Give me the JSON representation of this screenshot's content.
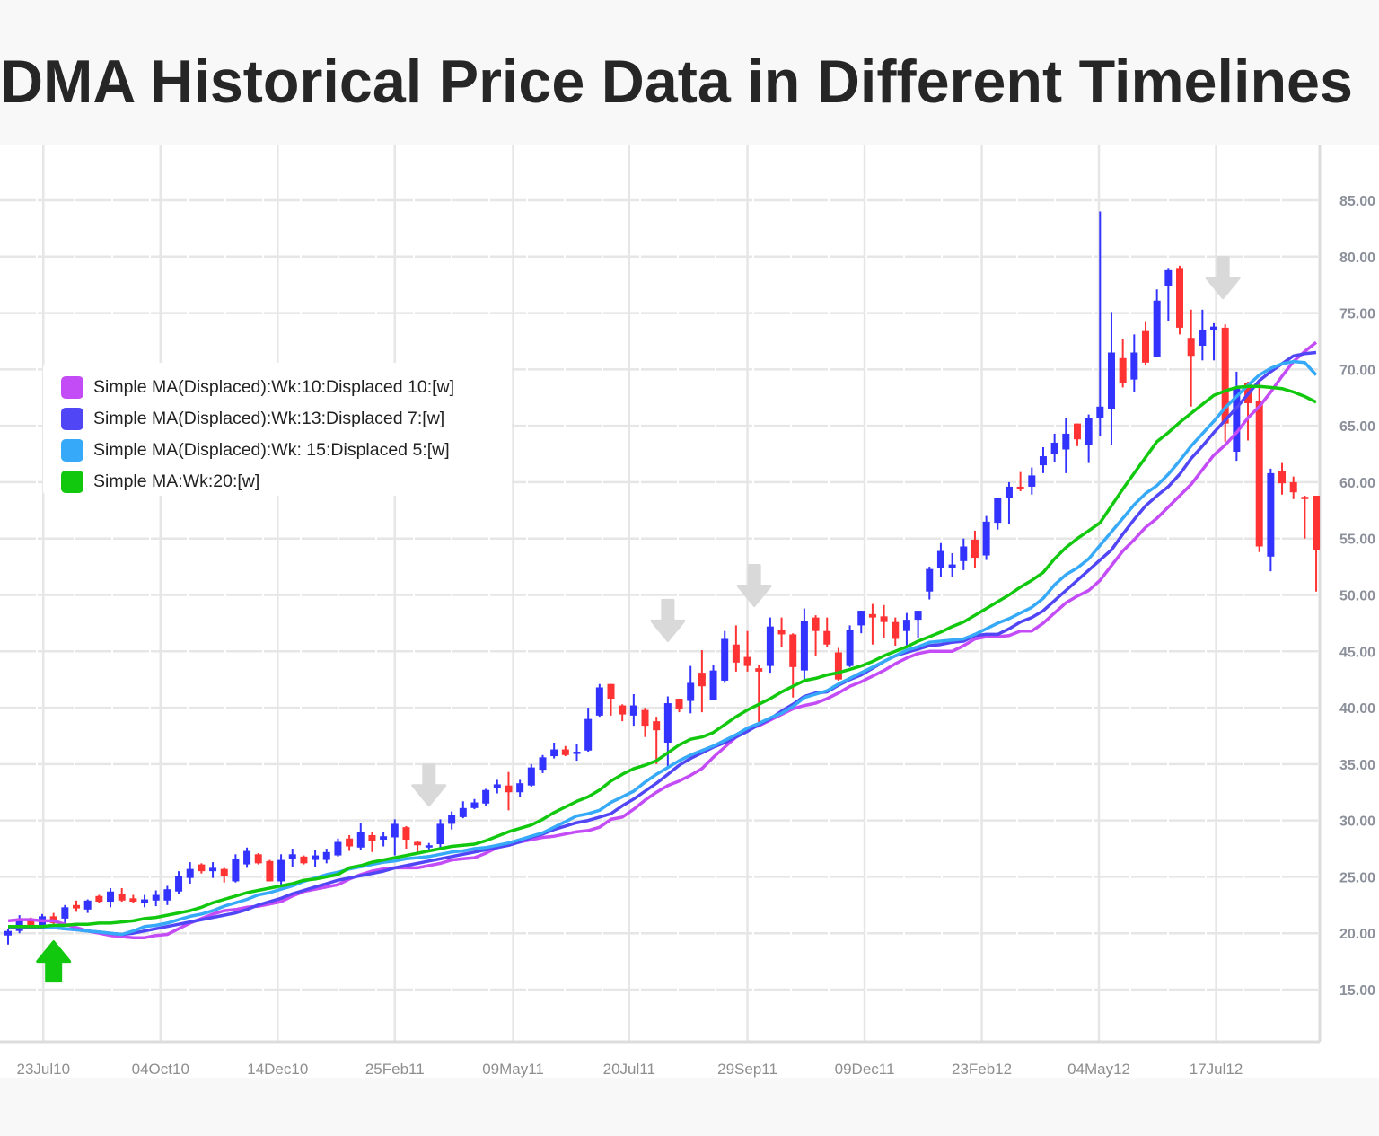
{
  "title": "DMA Historical Price Data in Different Timelines",
  "chart_data": {
    "type": "candlestick",
    "title": "DMA Historical Price Data in Different Timelines",
    "xlabel": "",
    "ylabel": "",
    "ylim": [
      15,
      85
    ],
    "yticks": [
      "15.00",
      "20.00",
      "25.00",
      "30.00",
      "35.00",
      "40.00",
      "45.00",
      "50.00",
      "55.00",
      "60.00",
      "65.00",
      "70.00",
      "75.00",
      "80.00",
      "85.00"
    ],
    "xticks": [
      {
        "label": "23Jul10",
        "index": 3.1
      },
      {
        "label": "04Oct10",
        "index": 13.4
      },
      {
        "label": "14Dec10",
        "index": 23.7
      },
      {
        "label": "25Feb11",
        "index": 34.0
      },
      {
        "label": "09May11",
        "index": 44.4
      },
      {
        "label": "20Jul11",
        "index": 54.6
      },
      {
        "label": "29Sep11",
        "index": 65.0
      },
      {
        "label": "09Dec11",
        "index": 75.3
      },
      {
        "label": "23Feb12",
        "index": 85.6
      },
      {
        "label": "04May12",
        "index": 95.9
      },
      {
        "label": "17Jul12",
        "index": 106.2
      }
    ],
    "grid": true,
    "legend_position": "top-left",
    "up_color": "#3333ff",
    "down_color": "#ff3333",
    "candles_ohlc": [
      [
        19.8,
        20.4,
        19.0,
        20.2
      ],
      [
        20.2,
        21.6,
        20.0,
        21.3
      ],
      [
        21.2,
        21.4,
        20.6,
        20.7
      ],
      [
        20.6,
        21.7,
        20.4,
        21.5
      ],
      [
        21.5,
        21.8,
        20.8,
        20.9
      ],
      [
        21.3,
        22.5,
        20.7,
        22.3
      ],
      [
        22.5,
        22.9,
        21.9,
        22.2
      ],
      [
        22.1,
        23.0,
        21.8,
        22.9
      ],
      [
        23.3,
        23.4,
        22.7,
        22.8
      ],
      [
        22.8,
        24.0,
        22.3,
        23.7
      ],
      [
        23.5,
        24.0,
        22.8,
        22.9
      ],
      [
        23.1,
        23.4,
        22.7,
        22.8
      ],
      [
        22.7,
        23.4,
        22.3,
        23.0
      ],
      [
        22.9,
        23.8,
        22.4,
        23.4
      ],
      [
        22.9,
        24.2,
        22.5,
        23.9
      ],
      [
        23.7,
        25.5,
        23.5,
        25.1
      ],
      [
        24.9,
        26.3,
        24.4,
        25.7
      ],
      [
        26.1,
        26.2,
        25.3,
        25.5
      ],
      [
        25.5,
        26.3,
        24.9,
        25.8
      ],
      [
        25.7,
        25.8,
        24.5,
        25.1
      ],
      [
        24.6,
        27.0,
        24.5,
        26.6
      ],
      [
        26.1,
        27.6,
        25.8,
        27.3
      ],
      [
        27.0,
        27.1,
        26.1,
        26.2
      ],
      [
        26.4,
        26.5,
        24.6,
        24.6
      ],
      [
        24.6,
        27.0,
        24.2,
        26.5
      ],
      [
        26.6,
        27.5,
        25.9,
        27.0
      ],
      [
        26.8,
        26.9,
        26.1,
        26.2
      ],
      [
        26.5,
        27.4,
        25.9,
        26.9
      ],
      [
        26.5,
        27.5,
        26.2,
        27.2
      ],
      [
        26.9,
        28.4,
        26.8,
        28.1
      ],
      [
        28.4,
        28.7,
        27.3,
        27.7
      ],
      [
        27.6,
        29.8,
        27.4,
        29.0
      ],
      [
        28.7,
        29.0,
        27.2,
        28.2
      ],
      [
        28.3,
        29.0,
        27.7,
        28.6
      ],
      [
        28.5,
        30.1,
        26.9,
        29.7
      ],
      [
        29.4,
        29.5,
        27.5,
        28.3
      ],
      [
        28.1,
        28.2,
        27.1,
        27.8
      ],
      [
        27.6,
        28.0,
        27.2,
        27.8
      ],
      [
        27.9,
        30.1,
        27.5,
        29.7
      ],
      [
        29.7,
        30.8,
        29.2,
        30.5
      ],
      [
        30.3,
        31.7,
        30.2,
        31.1
      ],
      [
        31.1,
        31.9,
        31.0,
        31.6
      ],
      [
        31.5,
        32.8,
        31.3,
        32.7
      ],
      [
        32.9,
        33.6,
        32.4,
        33.2
      ],
      [
        33.1,
        34.3,
        30.9,
        32.5
      ],
      [
        32.5,
        33.6,
        32.1,
        33.3
      ],
      [
        33.1,
        35.0,
        33.0,
        34.7
      ],
      [
        34.5,
        35.8,
        34.2,
        35.6
      ],
      [
        35.7,
        36.9,
        35.5,
        36.3
      ],
      [
        36.3,
        36.6,
        35.7,
        35.8
      ],
      [
        35.9,
        36.8,
        35.3,
        36.1
      ],
      [
        36.2,
        40.0,
        36.1,
        39.0
      ],
      [
        39.3,
        42.1,
        39.2,
        41.8
      ],
      [
        42.1,
        42.1,
        39.3,
        40.8
      ],
      [
        40.2,
        40.3,
        38.8,
        39.4
      ],
      [
        39.3,
        41.2,
        38.4,
        40.2
      ],
      [
        39.8,
        40.0,
        37.4,
        38.4
      ],
      [
        38.8,
        39.2,
        35.0,
        38.0
      ],
      [
        36.9,
        41.0,
        34.6,
        40.4
      ],
      [
        40.8,
        40.8,
        39.6,
        39.9
      ],
      [
        40.6,
        43.7,
        39.5,
        42.2
      ],
      [
        43.1,
        45.1,
        39.6,
        41.9
      ],
      [
        40.7,
        43.8,
        40.7,
        43.3
      ],
      [
        42.4,
        46.8,
        42.2,
        46.1
      ],
      [
        45.6,
        47.3,
        43.2,
        44.0
      ],
      [
        44.5,
        46.8,
        43.2,
        43.7
      ],
      [
        43.5,
        43.8,
        38.4,
        43.2
      ],
      [
        43.7,
        48.0,
        43.1,
        47.2
      ],
      [
        46.9,
        48.0,
        45.4,
        46.5
      ],
      [
        46.5,
        46.6,
        40.9,
        43.6
      ],
      [
        43.3,
        48.8,
        42.4,
        47.7
      ],
      [
        48.0,
        48.2,
        44.6,
        46.8
      ],
      [
        46.8,
        48.0,
        45.4,
        45.6
      ],
      [
        44.9,
        45.3,
        42.4,
        42.5
      ],
      [
        43.7,
        47.3,
        43.6,
        46.9
      ],
      [
        47.3,
        48.6,
        46.6,
        48.6
      ],
      [
        48.3,
        49.2,
        45.6,
        48.0
      ],
      [
        48.1,
        49.1,
        46.2,
        47.6
      ],
      [
        47.6,
        48.0,
        45.5,
        46.1
      ],
      [
        46.8,
        48.4,
        45.5,
        47.8
      ],
      [
        47.8,
        48.6,
        46.2,
        48.6
      ],
      [
        50.3,
        52.5,
        49.6,
        52.3
      ],
      [
        52.4,
        54.6,
        51.6,
        53.9
      ],
      [
        52.4,
        53.7,
        51.6,
        52.7
      ],
      [
        53.0,
        55.0,
        52.2,
        54.3
      ],
      [
        54.9,
        55.7,
        52.4,
        53.3
      ],
      [
        53.5,
        57.0,
        53.1,
        56.5
      ],
      [
        56.4,
        58.6,
        55.8,
        58.6
      ],
      [
        58.6,
        60.0,
        56.3,
        59.6
      ],
      [
        59.6,
        60.9,
        59.2,
        59.4
      ],
      [
        59.6,
        61.3,
        58.9,
        60.6
      ],
      [
        61.5,
        63.1,
        60.8,
        62.3
      ],
      [
        62.5,
        64.3,
        61.8,
        63.5
      ],
      [
        62.9,
        65.7,
        60.8,
        64.3
      ],
      [
        65.2,
        65.2,
        63.2,
        63.8
      ],
      [
        63.3,
        66.0,
        61.7,
        65.7
      ],
      [
        65.7,
        84.0,
        64.1,
        66.7
      ],
      [
        66.5,
        75.1,
        63.3,
        71.5
      ],
      [
        71.0,
        72.7,
        68.4,
        68.8
      ],
      [
        69.1,
        73.1,
        68.0,
        71.5
      ],
      [
        73.4,
        74.2,
        70.4,
        70.6
      ],
      [
        71.1,
        77.1,
        71.1,
        76.1
      ],
      [
        77.4,
        79.0,
        74.3,
        78.8
      ],
      [
        79.0,
        79.2,
        73.1,
        73.7
      ],
      [
        72.8,
        75.3,
        66.7,
        71.2
      ],
      [
        72.1,
        75.3,
        70.8,
        73.5
      ],
      [
        73.5,
        74.1,
        70.8,
        73.8
      ],
      [
        73.7,
        74.0,
        63.6,
        65.2
      ],
      [
        62.7,
        69.8,
        61.9,
        68.3
      ],
      [
        68.8,
        68.9,
        63.7,
        67.0
      ],
      [
        67.2,
        69.1,
        53.8,
        54.3
      ],
      [
        53.4,
        61.2,
        52.1,
        60.8
      ],
      [
        61.0,
        61.7,
        58.9,
        59.9
      ],
      [
        60.0,
        60.5,
        58.5,
        59.1
      ],
      [
        58.7,
        58.8,
        55.0,
        58.5
      ],
      [
        58.8,
        58.8,
        50.3,
        54.0
      ]
    ],
    "series": [
      {
        "name": "Simple MA(Displaced):Wk:10:Displaced 10:[w]",
        "color": "#c44cf6",
        "values": [
          21.1,
          21.2,
          21.2,
          21.1,
          21.1,
          20.8,
          20.5,
          20.2,
          20.0,
          19.8,
          19.7,
          19.6,
          19.6,
          19.8,
          19.9,
          20.4,
          20.9,
          21.3,
          21.7,
          22.0,
          22.1,
          22.3,
          22.4,
          22.6,
          22.8,
          23.3,
          23.7,
          23.9,
          24.1,
          24.3,
          24.8,
          25.2,
          25.5,
          25.7,
          25.8,
          25.8,
          25.8,
          26.0,
          26.2,
          26.5,
          26.6,
          26.7,
          27.1,
          27.6,
          27.9,
          28.1,
          28.3,
          28.5,
          28.6,
          28.8,
          29.0,
          29.1,
          29.4,
          30.1,
          30.3,
          31.0,
          31.8,
          32.5,
          33.1,
          33.5,
          34.0,
          34.6,
          35.6,
          36.5,
          37.4,
          38.1,
          38.4,
          38.9,
          39.4,
          39.9,
          40.2,
          40.4,
          40.8,
          41.3,
          41.9,
          42.3,
          42.8,
          43.3,
          43.9,
          44.4,
          44.8,
          45.0,
          45.0,
          45.0,
          45.5,
          46.1,
          46.3,
          46.3,
          46.4,
          46.8,
          46.8,
          47.5,
          48.4,
          49.3,
          49.9,
          50.4,
          51.3,
          52.6,
          53.9,
          54.9,
          56.0,
          56.8,
          57.8,
          58.8,
          59.8,
          61.1,
          62.4,
          63.3,
          64.4,
          65.7,
          66.7,
          68.0,
          69.4,
          70.7,
          71.6,
          72.4
        ]
      },
      {
        "name": "Simple MA(Displaced):Wk:13:Displaced 7:[w]",
        "color": "#5146f6",
        "values": [
          20.5,
          20.5,
          20.5,
          20.5,
          20.5,
          20.4,
          20.3,
          20.2,
          20.1,
          20.0,
          19.9,
          20.0,
          20.2,
          20.4,
          20.6,
          20.8,
          21.0,
          21.2,
          21.4,
          21.6,
          21.8,
          22.1,
          22.5,
          22.8,
          23.1,
          23.5,
          23.8,
          24.1,
          24.4,
          24.7,
          24.9,
          25.1,
          25.3,
          25.5,
          25.8,
          26.0,
          26.2,
          26.4,
          26.6,
          26.8,
          27.0,
          27.2,
          27.4,
          27.6,
          27.8,
          28.1,
          28.5,
          28.8,
          29.2,
          29.5,
          29.8,
          30.0,
          30.3,
          30.6,
          31.3,
          31.9,
          32.6,
          33.3,
          34.1,
          34.9,
          35.5,
          36.0,
          36.5,
          36.9,
          37.4,
          37.9,
          38.5,
          39.0,
          39.7,
          40.3,
          41.0,
          41.3,
          41.4,
          42.0,
          42.5,
          42.9,
          43.5,
          44.1,
          44.6,
          44.9,
          45.2,
          45.5,
          45.6,
          45.8,
          45.9,
          46.4,
          46.5,
          46.5,
          47.0,
          47.6,
          48.0,
          48.6,
          49.5,
          50.4,
          51.3,
          52.2,
          53.1,
          54.0,
          55.4,
          56.7,
          57.9,
          58.8,
          59.6,
          60.7,
          62.1,
          63.2,
          64.4,
          65.5,
          66.6,
          67.8,
          69.0,
          69.8,
          70.5,
          71.2,
          71.4,
          71.5
        ]
      },
      {
        "name": "Simple MA(Displaced):Wk: 15:Displaced 5:[w]",
        "color": "#36a9f8",
        "values": [
          20.6,
          20.6,
          20.6,
          20.6,
          20.5,
          20.4,
          20.3,
          20.2,
          20.1,
          20.0,
          19.9,
          20.2,
          20.6,
          20.7,
          20.9,
          21.2,
          21.5,
          21.7,
          22.0,
          22.4,
          22.7,
          23.0,
          23.4,
          23.6,
          23.9,
          24.2,
          24.6,
          24.9,
          25.2,
          25.4,
          25.7,
          25.9,
          26.1,
          26.3,
          26.4,
          26.6,
          26.7,
          26.8,
          27.0,
          27.2,
          27.3,
          27.5,
          27.6,
          27.8,
          28.0,
          28.3,
          28.6,
          28.9,
          29.4,
          29.9,
          30.4,
          30.6,
          30.9,
          31.6,
          32.1,
          32.6,
          33.4,
          34.1,
          34.7,
          35.3,
          35.8,
          36.2,
          36.6,
          37.1,
          37.6,
          38.2,
          38.6,
          39.1,
          39.5,
          40.1,
          40.9,
          41.2,
          41.5,
          42.1,
          42.6,
          43.1,
          43.6,
          44.1,
          44.6,
          45.1,
          45.4,
          45.8,
          45.9,
          46.0,
          46.1,
          46.5,
          47.0,
          47.5,
          47.9,
          48.4,
          48.9,
          49.7,
          50.9,
          51.8,
          52.4,
          53.2,
          54.4,
          55.6,
          56.8,
          58.0,
          59.0,
          59.7,
          60.7,
          61.9,
          63.2,
          64.3,
          65.4,
          66.6,
          67.6,
          68.6,
          69.5,
          70.1,
          70.5,
          70.7,
          70.6,
          69.5
        ]
      },
      {
        "name": "Simple MA:Wk:20:[w]",
        "color": "#12c80e",
        "values": [
          20.6,
          20.6,
          20.6,
          20.6,
          20.7,
          20.7,
          20.8,
          20.8,
          20.9,
          20.9,
          21.0,
          21.1,
          21.3,
          21.4,
          21.6,
          21.8,
          22.0,
          22.3,
          22.7,
          23.0,
          23.3,
          23.6,
          23.8,
          24.0,
          24.2,
          24.4,
          24.7,
          24.8,
          25.0,
          25.2,
          25.8,
          26.0,
          26.3,
          26.5,
          26.7,
          26.9,
          27.1,
          27.3,
          27.5,
          27.7,
          27.8,
          27.9,
          28.2,
          28.6,
          29.0,
          29.3,
          29.6,
          30.1,
          30.7,
          31.2,
          31.7,
          32.1,
          32.7,
          33.5,
          34.1,
          34.6,
          34.9,
          35.3,
          36.0,
          36.7,
          37.2,
          37.4,
          37.8,
          38.5,
          39.2,
          39.8,
          40.3,
          40.8,
          41.4,
          41.9,
          42.4,
          42.6,
          42.9,
          43.1,
          43.4,
          43.7,
          44.1,
          44.6,
          45.0,
          45.4,
          45.9,
          46.3,
          46.7,
          47.2,
          47.6,
          48.2,
          48.8,
          49.4,
          50.0,
          50.7,
          51.3,
          52.0,
          53.2,
          54.2,
          55.0,
          55.7,
          56.4,
          57.9,
          59.4,
          60.8,
          62.2,
          63.6,
          64.4,
          65.3,
          66.1,
          66.9,
          67.7,
          68.1,
          68.4,
          68.5,
          68.5,
          68.4,
          68.3,
          68.0,
          67.6,
          67.1
        ]
      }
    ],
    "markers": [
      {
        "type": "buy-arrow",
        "index": 4,
        "value": 17.5,
        "color": "#12c80e"
      },
      {
        "type": "sell-arrow",
        "index": 37.0,
        "value": 33.1,
        "color": "#d9d9d9"
      },
      {
        "type": "sell-arrow",
        "index": 58.0,
        "value": 47.7,
        "color": "#d9d9d9"
      },
      {
        "type": "sell-arrow",
        "index": 65.6,
        "value": 50.8,
        "color": "#d9d9d9"
      },
      {
        "type": "sell-arrow",
        "index": 106.8,
        "value": 78.1,
        "color": "#d9d9d9"
      }
    ]
  }
}
